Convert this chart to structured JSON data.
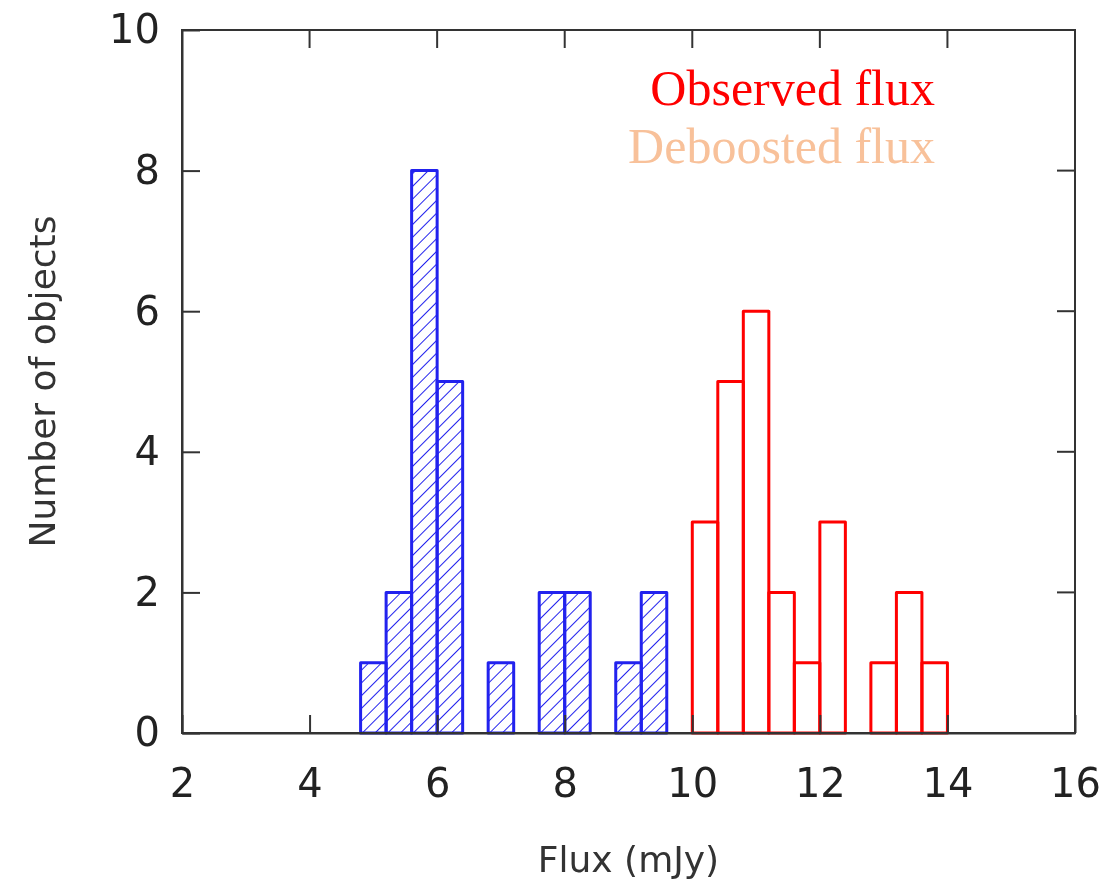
{
  "chart_data": {
    "type": "histogram",
    "xlabel": "Flux (mJy)",
    "ylabel": "Number of objects",
    "xlim": [
      2,
      16
    ],
    "xticks": [
      2,
      4,
      6,
      8,
      10,
      12,
      14,
      16
    ],
    "ylim": [
      0,
      10
    ],
    "yticks": [
      0,
      2,
      4,
      6,
      8,
      10
    ],
    "legend": "top right",
    "annotations": [
      "Deboosted flux"
    ],
    "grid": false,
    "bins": [
      4.8,
      5.2,
      5.6,
      6.0,
      6.4,
      6.8,
      7.2,
      7.6,
      8.0,
      8.4,
      8.8,
      9.2,
      9.6,
      10.0,
      10.4,
      10.8,
      11.2,
      11.6,
      12.0,
      12.4,
      12.8,
      13.2,
      13.6,
      14.0
    ],
    "series": [
      {
        "name": "Observed flux",
        "color": "#ff0000",
        "values": [
          null,
          null,
          null,
          null,
          null,
          null,
          null,
          null,
          null,
          null,
          null,
          null,
          null,
          3,
          5,
          6,
          2,
          1,
          3,
          0,
          1,
          2,
          1
        ]
      },
      {
        "color": "#2222ee",
        "values": [
          1,
          2,
          8,
          5,
          0,
          1,
          0,
          2,
          2,
          0,
          1,
          2,
          null,
          null,
          null,
          null,
          null,
          null,
          null,
          null,
          null,
          null,
          null
        ]
      }
    ]
  }
}
